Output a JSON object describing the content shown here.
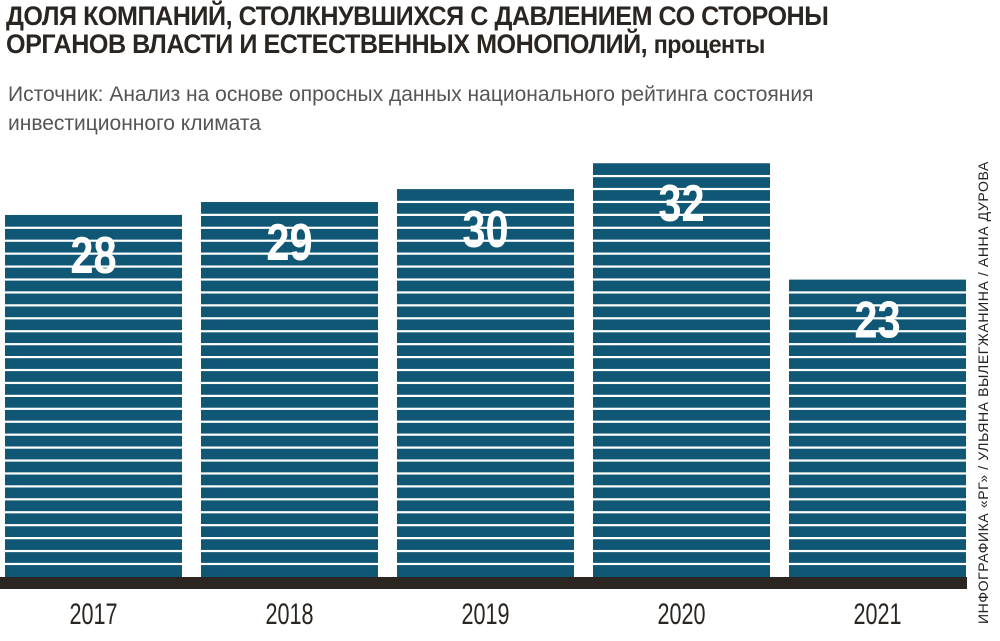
{
  "title_line1": "ДОЛЯ КОМПАНИЙ, СТОЛКНУВШИХСЯ С ДАВЛЕНИЕМ СО СТОРОНЫ",
  "title_line2": "ОРГАНОВ ВЛАСТИ И ЕСТЕСТВЕННЫХ МОНОПОЛИЙ,",
  "title_unit": "проценты",
  "source": "Источник:  Анализ на основе опросных данных национального рейтинга состояния инвестиционного климата",
  "credit": "ИНФОГРАФИКА «РГ» / УЛЬЯНА ВЫЛЕГЖАНИНА / АННА ДУРОВА",
  "chart_data": {
    "type": "bar",
    "title": "Доля компаний, столкнувшихся с давлением со стороны органов власти и естественных монополий, проценты",
    "categories": [
      "2017",
      "2018",
      "2019",
      "2020",
      "2021"
    ],
    "values": [
      28,
      29,
      30,
      32,
      23
    ],
    "xlabel": "",
    "ylabel": "",
    "ylim": [
      0,
      35
    ],
    "grid": false,
    "bar_color": "#0f5775",
    "baseline_color": "#2b2621"
  }
}
